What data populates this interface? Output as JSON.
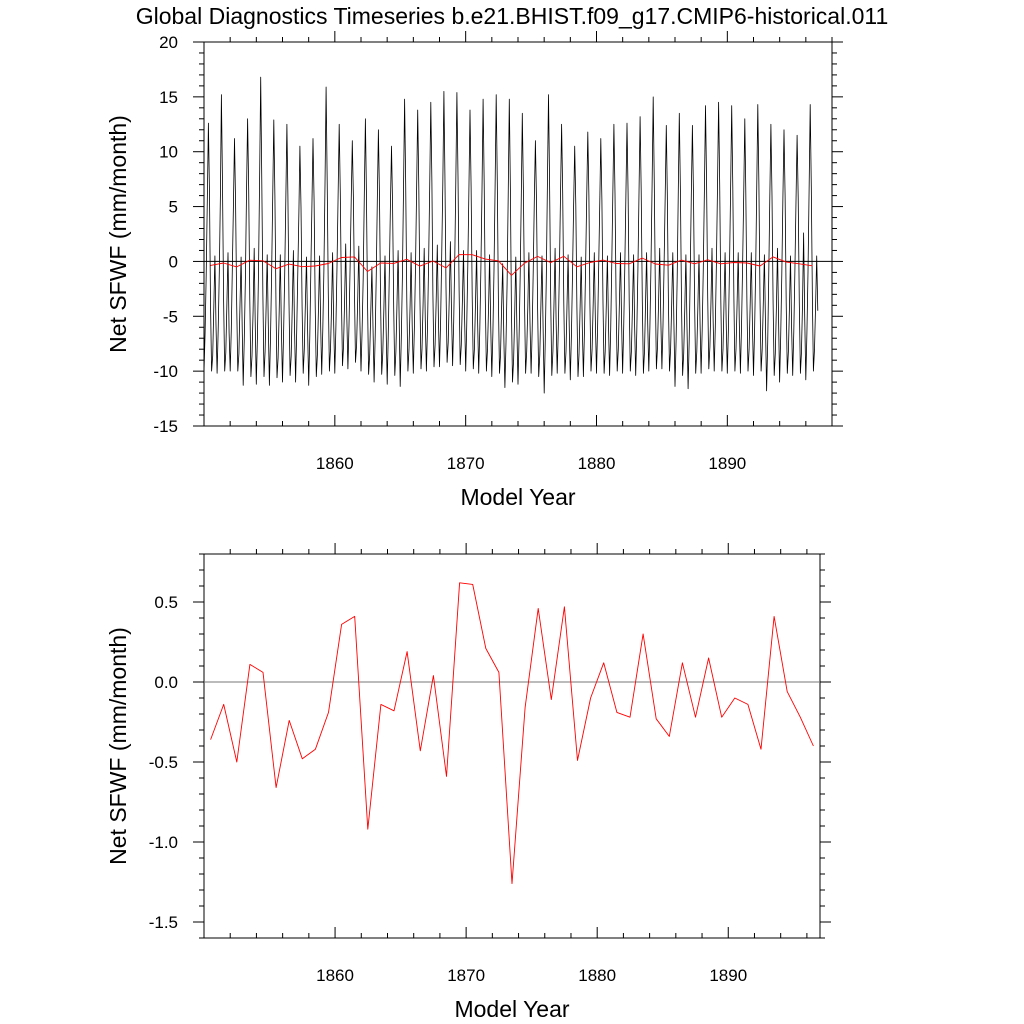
{
  "title": "Global Diagnostics Timeseries b.e21.BHIST.f09_g17.CMIP6-historical.011",
  "colors": {
    "monthly": "#000000",
    "annual": "#ff0000",
    "zero_line": "#000000"
  },
  "chart_data": [
    {
      "type": "line",
      "xlabel": "Model Year",
      "ylabel": "Net SFWF (mm/month)",
      "xlim": [
        1850,
        1898
      ],
      "ylim": [
        -15,
        20
      ],
      "x_ticks": [
        1860,
        1870,
        1880,
        1890
      ],
      "y_ticks": [
        -15,
        -10,
        -5,
        0,
        5,
        10,
        15,
        20
      ],
      "y_tick_labels": [
        "-15",
        "-10",
        "-5",
        "0",
        "5",
        "10",
        "15",
        "20"
      ],
      "reference_line": 0,
      "series": [
        {
          "style": "monthly",
          "x_start": 1850,
          "x_step": 0.08333,
          "values": [
            -10.1,
            -6.5,
            -1.2,
            5.5,
            12.6,
            6.1,
            -3.8,
            -10.0,
            -8.6,
            -4.2,
            0.5,
            -5.8,
            -10.2,
            -6.2,
            -1.0,
            6.0,
            15.2,
            7.0,
            -3.5,
            -10.0,
            -8.3,
            -3.8,
            0.8,
            -6.5,
            -10.0,
            -6.2,
            -0.8,
            5.0,
            11.2,
            5.2,
            -4.0,
            -10.0,
            -8.4,
            -3.9,
            0.4,
            -6.0,
            -11.3,
            -7.0,
            -1.5,
            6.2,
            13.0,
            6.5,
            -3.5,
            -10.5,
            -8.6,
            -4.5,
            1.2,
            -5.5,
            -11.2,
            -7.0,
            -1.0,
            7.5,
            16.8,
            7.2,
            -3.2,
            -10.5,
            -8.2,
            -4.2,
            0.6,
            -5.8,
            -11.3,
            -7.0,
            -1.2,
            5.8,
            12.9,
            6.0,
            -4.0,
            -10.6,
            -8.8,
            -4.5,
            0.6,
            -6.2,
            -11.0,
            -6.5,
            -1.2,
            5.5,
            12.5,
            6.0,
            -3.8,
            -10.4,
            -8.6,
            -4.0,
            1.0,
            -6.0,
            -11.0,
            -6.4,
            -1.0,
            4.5,
            10.5,
            5.0,
            -4.2,
            -10.2,
            -8.0,
            -3.8,
            0.4,
            -6.2,
            -11.3,
            -6.8,
            -1.0,
            5.0,
            11.2,
            5.5,
            -4.0,
            -10.5,
            -8.5,
            -4.2,
            0.5,
            -6.0,
            -10.3,
            -6.2,
            -0.8,
            7.0,
            15.9,
            7.2,
            -3.0,
            -10.0,
            -8.0,
            -4.0,
            0.8,
            -5.8,
            -10.2,
            -6.0,
            -0.5,
            6.0,
            12.5,
            6.2,
            -3.2,
            -9.5,
            -7.8,
            -3.6,
            1.6,
            -5.0,
            -9.8,
            -5.8,
            -0.5,
            5.5,
            11.0,
            5.8,
            -3.0,
            -9.2,
            -7.6,
            -3.5,
            1.4,
            -5.5,
            -10.0,
            -6.3,
            -1.5,
            6.0,
            13.0,
            6.4,
            -3.5,
            -10.3,
            -8.5,
            -4.5,
            -0.5,
            -6.0,
            -11.0,
            -6.8,
            -1.0,
            5.5,
            12.0,
            5.8,
            -3.8,
            -10.3,
            -8.3,
            -4.2,
            0.5,
            -6.0,
            -11.2,
            -7.0,
            -1.2,
            5.0,
            10.5,
            5.0,
            -4.2,
            -10.4,
            -8.2,
            -3.8,
            1.0,
            -5.5,
            -11.4,
            -7.0,
            -1.4,
            6.5,
            14.8,
            7.0,
            -3.5,
            -10.0,
            -8.0,
            -4.0,
            0.8,
            -5.8,
            -10.2,
            -6.0,
            -0.5,
            6.5,
            13.8,
            6.8,
            -3.2,
            -9.8,
            -8.0,
            -3.8,
            1.2,
            -5.4,
            -10.0,
            -6.0,
            -0.2,
            6.8,
            14.5,
            7.2,
            -3.0,
            -9.6,
            -7.6,
            -3.5,
            1.5,
            -5.2,
            -9.6,
            -5.5,
            0.5,
            7.0,
            15.5,
            8.0,
            -2.4,
            -9.2,
            -7.4,
            -3.2,
            1.8,
            -4.6,
            -9.5,
            -5.5,
            0.4,
            7.2,
            15.4,
            7.8,
            -2.6,
            -9.4,
            -7.6,
            -3.6,
            1.0,
            -5.2,
            -10.0,
            -6.0,
            -0.4,
            6.5,
            13.8,
            6.8,
            -3.2,
            -9.8,
            -8.0,
            -3.8,
            1.0,
            -5.4,
            -10.2,
            -6.2,
            -0.6,
            6.5,
            14.8,
            7.0,
            -3.4,
            -10.0,
            -8.0,
            -4.0,
            0.6,
            -5.8,
            -10.5,
            -6.5,
            -0.8,
            6.8,
            15.2,
            7.2,
            -3.6,
            -10.2,
            -8.6,
            -4.2,
            -0.2,
            -6.8,
            -11.5,
            -7.4,
            -2.0,
            6.0,
            14.8,
            6.5,
            -4.2,
            -11.0,
            -9.0,
            -4.8,
            0.4,
            -6.2,
            -11.2,
            -6.8,
            -1.2,
            6.0,
            13.5,
            6.5,
            -3.6,
            -10.2,
            -8.2,
            -4.2,
            0.8,
            -5.6,
            -10.2,
            -6.2,
            -0.5,
            5.5,
            11.0,
            5.5,
            -4.2,
            -10.5,
            -8.5,
            -4.0,
            0.5,
            -6.0,
            -12.0,
            -7.5,
            -1.5,
            7.0,
            15.2,
            7.0,
            -3.5,
            -10.4,
            -8.2,
            -3.8,
            1.2,
            -5.4,
            -10.2,
            -6.2,
            -0.8,
            6.0,
            12.5,
            6.2,
            -3.8,
            -10.2,
            -8.2,
            -4.0,
            0.6,
            -5.8,
            -10.8,
            -6.8,
            -1.2,
            5.0,
            10.5,
            5.2,
            -4.2,
            -10.5,
            -8.5,
            -4.2,
            0.4,
            -6.0,
            -10.5,
            -6.2,
            -0.5,
            5.8,
            11.8,
            6.0,
            -3.8,
            -10.0,
            -8.0,
            -3.8,
            0.8,
            -5.6,
            -10.2,
            -6.0,
            -0.4,
            5.5,
            11.2,
            5.6,
            -3.8,
            -10.2,
            -8.2,
            -4.0,
            0.5,
            -5.8,
            -10.4,
            -6.2,
            -0.6,
            6.0,
            12.5,
            6.2,
            -3.6,
            -10.0,
            -8.0,
            -3.8,
            0.8,
            -5.6,
            -10.2,
            -6.0,
            -0.5,
            6.0,
            12.6,
            6.2,
            -3.6,
            -10.0,
            -8.2,
            -4.0,
            0.6,
            -5.8,
            -10.4,
            -6.4,
            -0.8,
            6.2,
            13.2,
            6.4,
            -3.6,
            -10.2,
            -8.2,
            -4.0,
            0.8,
            -5.6,
            -10.0,
            -6.0,
            -0.2,
            7.0,
            15.0,
            7.0,
            -3.2,
            -9.8,
            -7.8,
            -3.6,
            1.2,
            -5.2,
            -9.8,
            -5.8,
            -0.2,
            6.0,
            12.4,
            6.2,
            -3.6,
            -10.0,
            -8.0,
            -3.8,
            0.8,
            -5.6,
            -11.4,
            -7.2,
            -1.4,
            6.5,
            13.5,
            6.5,
            -3.8,
            -10.4,
            -8.4,
            -4.2,
            0.6,
            -6.0,
            -11.6,
            -7.2,
            -1.2,
            6.0,
            12.4,
            6.0,
            -3.8,
            -10.2,
            -8.2,
            -4.0,
            0.6,
            -5.8,
            -10.2,
            -6.2,
            -0.6,
            6.5,
            14.2,
            7.0,
            -3.2,
            -9.8,
            -7.8,
            -3.6,
            1.2,
            -5.2,
            -10.0,
            -6.0,
            -0.2,
            6.8,
            14.5,
            7.0,
            -3.4,
            -10.0,
            -8.0,
            -3.8,
            0.8,
            -5.6,
            -10.2,
            -6.2,
            -0.5,
            6.5,
            14.2,
            6.8,
            -3.4,
            -10.0,
            -8.0,
            -3.8,
            0.8,
            -5.6,
            -10.2,
            -6.0,
            -0.4,
            6.0,
            13.0,
            6.4,
            -3.6,
            -10.0,
            -8.0,
            -3.8,
            0.8,
            -5.6,
            -10.4,
            -6.2,
            -0.6,
            6.5,
            14.3,
            7.0,
            -3.4,
            -10.0,
            -8.0,
            -3.8,
            0.6,
            -5.8,
            -11.8,
            -7.4,
            -1.6,
            5.8,
            12.5,
            6.0,
            -3.8,
            -10.4,
            -8.4,
            -4.2,
            1.2,
            -5.5,
            -11.0,
            -6.8,
            -1.2,
            5.8,
            12.0,
            6.0,
            -3.8,
            -10.2,
            -8.2,
            -4.0,
            0.5,
            -6.0,
            -10.4,
            -6.4,
            -0.8,
            5.5,
            11.5,
            5.8,
            -3.8,
            -10.2,
            -8.4,
            -4.0,
            2.6,
            -5.0,
            -10.8,
            -6.6,
            -1.0,
            6.5,
            14.3,
            6.8,
            -3.5,
            -10.0,
            -8.0,
            -4.0,
            0.5,
            -4.5
          ]
        },
        {
          "style": "annual",
          "x": [
            1850.5,
            1851.5,
            1852.5,
            1853.5,
            1854.5,
            1855.5,
            1856.5,
            1857.5,
            1858.5,
            1859.5,
            1860.5,
            1861.5,
            1862.5,
            1863.5,
            1864.5,
            1865.5,
            1866.5,
            1867.5,
            1868.5,
            1869.5,
            1870.5,
            1871.5,
            1872.5,
            1873.5,
            1874.5,
            1875.5,
            1876.5,
            1877.5,
            1878.5,
            1879.5,
            1880.5,
            1881.5,
            1882.5,
            1883.5,
            1884.5,
            1885.5,
            1886.5,
            1887.5,
            1888.5,
            1889.5,
            1890.5,
            1891.5,
            1892.5,
            1893.5,
            1894.5,
            1895.5,
            1896.5
          ],
          "values": [
            -0.36,
            -0.14,
            -0.5,
            0.11,
            0.06,
            -0.66,
            -0.24,
            -0.48,
            -0.42,
            -0.19,
            0.36,
            0.41,
            -0.92,
            -0.14,
            -0.18,
            0.19,
            -0.43,
            0.04,
            -0.59,
            0.62,
            0.61,
            0.21,
            0.06,
            -1.26,
            -0.16,
            0.46,
            -0.11,
            0.47,
            -0.49,
            -0.1,
            0.12,
            -0.19,
            -0.22,
            0.3,
            -0.23,
            -0.34,
            0.12,
            -0.22,
            0.15,
            -0.22,
            -0.1,
            -0.14,
            -0.42,
            0.41,
            -0.06,
            -0.22,
            -0.4
          ]
        }
      ]
    },
    {
      "type": "line",
      "xlabel": "Model Year",
      "ylabel": "Net SFWF (mm/month)",
      "xlim": [
        1850,
        1897
      ],
      "ylim": [
        -1.6,
        0.8
      ],
      "x_ticks": [
        1860,
        1870,
        1880,
        1890
      ],
      "y_ticks": [
        -1.5,
        -1.0,
        -0.5,
        0.0,
        0.5
      ],
      "y_tick_labels": [
        "-1.5",
        "-1.0",
        "-0.5",
        "0.0",
        "0.5"
      ],
      "reference_line": 0,
      "series": [
        {
          "style": "annual",
          "x": [
            1850.5,
            1851.5,
            1852.5,
            1853.5,
            1854.5,
            1855.5,
            1856.5,
            1857.5,
            1858.5,
            1859.5,
            1860.5,
            1861.5,
            1862.5,
            1863.5,
            1864.5,
            1865.5,
            1866.5,
            1867.5,
            1868.5,
            1869.5,
            1870.5,
            1871.5,
            1872.5,
            1873.5,
            1874.5,
            1875.5,
            1876.5,
            1877.5,
            1878.5,
            1879.5,
            1880.5,
            1881.5,
            1882.5,
            1883.5,
            1884.5,
            1885.5,
            1886.5,
            1887.5,
            1888.5,
            1889.5,
            1890.5,
            1891.5,
            1892.5,
            1893.5,
            1894.5,
            1895.5,
            1896.5
          ],
          "values": [
            -0.36,
            -0.14,
            -0.5,
            0.11,
            0.06,
            -0.66,
            -0.24,
            -0.48,
            -0.42,
            -0.19,
            0.36,
            0.41,
            -0.92,
            -0.14,
            -0.18,
            0.19,
            -0.43,
            0.04,
            -0.59,
            0.62,
            0.61,
            0.21,
            0.06,
            -1.26,
            -0.16,
            0.46,
            -0.11,
            0.47,
            -0.49,
            -0.1,
            0.12,
            -0.19,
            -0.22,
            0.3,
            -0.23,
            -0.34,
            0.12,
            -0.22,
            0.15,
            -0.22,
            -0.1,
            -0.14,
            -0.42,
            0.41,
            -0.06,
            -0.22,
            -0.4
          ]
        }
      ]
    }
  ]
}
